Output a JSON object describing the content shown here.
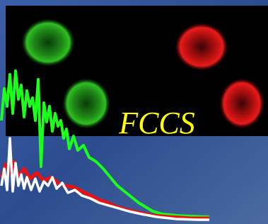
{
  "image": {
    "label": "FCCS"
  }
}
